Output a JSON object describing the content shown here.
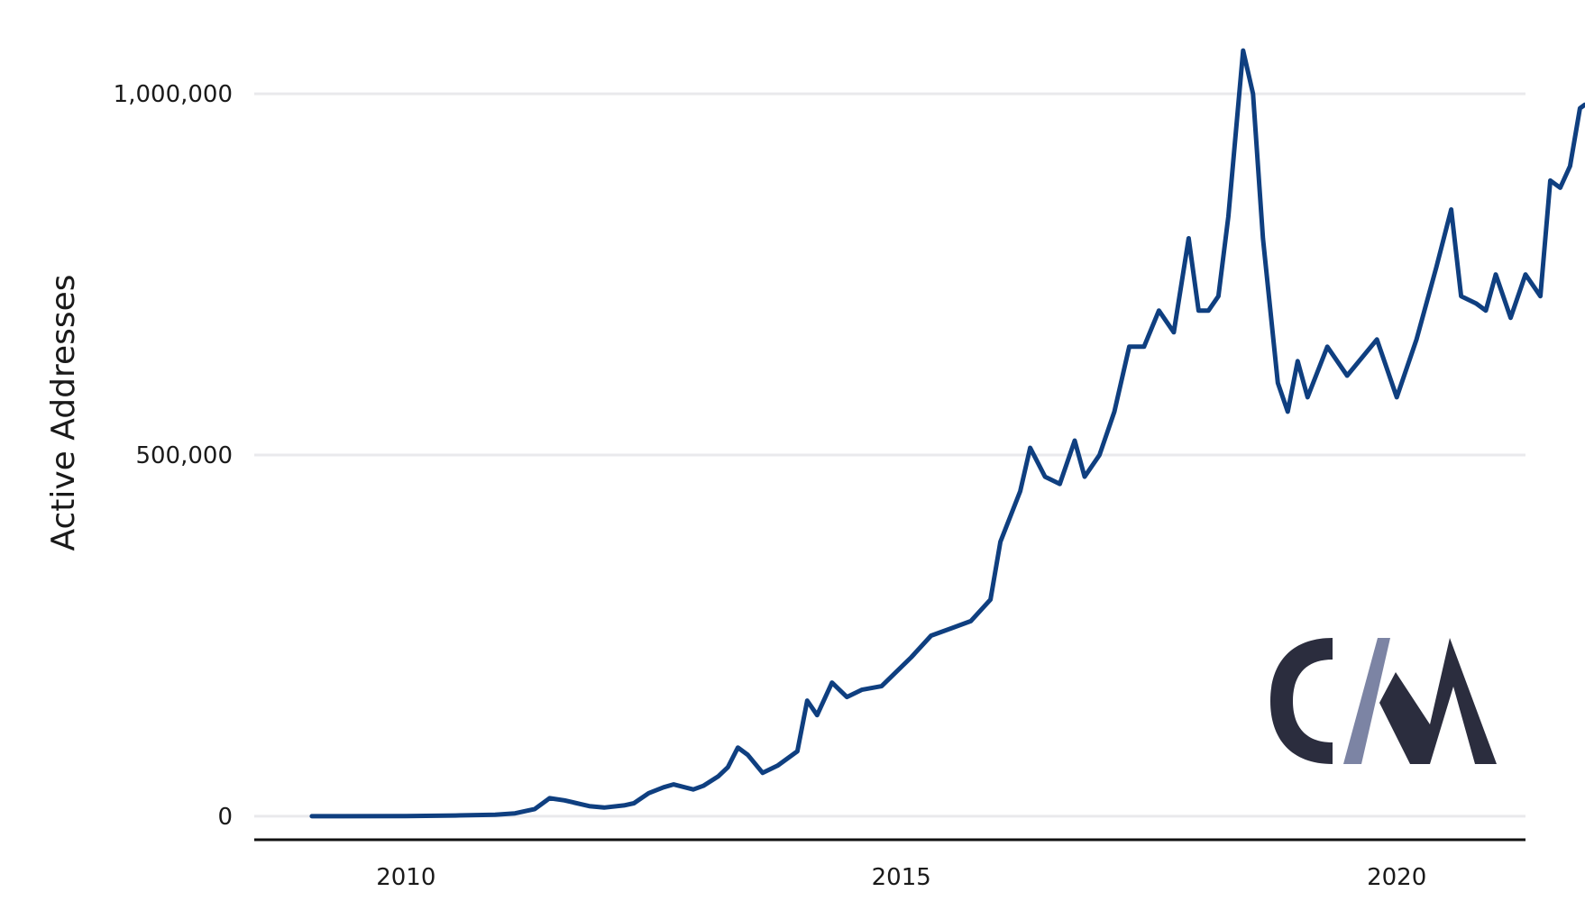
{
  "chart_data": {
    "type": "line",
    "title": "",
    "xlabel": "",
    "ylabel": "Active Addresses",
    "xlim": [
      2008.45,
      2021.3
    ],
    "ylim": [
      -55000,
      1105000
    ],
    "x_ticks": [
      2010,
      2015,
      2020
    ],
    "x_tick_labels": [
      "2010",
      "2015",
      "2020"
    ],
    "y_ticks": [
      0,
      500000,
      1000000
    ],
    "y_tick_labels": [
      "0",
      "500,000",
      "1,000,000"
    ],
    "grid": true,
    "legend": "none",
    "colors": {
      "series": "#0f3f80",
      "grid": "#e9e9ec",
      "axis": "#111111"
    },
    "logo": {
      "text": "CM",
      "left_color": "#2b2d3e",
      "slash_color": "#7c84a4",
      "right_color": "#2b2d3e"
    },
    "series": [
      {
        "values": [
          [
            2009.05,
            0
          ],
          [
            2010.0,
            300
          ],
          [
            2010.5,
            1000
          ],
          [
            2010.9,
            2000
          ],
          [
            2011.1,
            4000
          ],
          [
            2011.3,
            10000
          ],
          [
            2011.45,
            25000
          ],
          [
            2011.6,
            22000
          ],
          [
            2011.85,
            14000
          ],
          [
            2012.0,
            12000
          ],
          [
            2012.2,
            15000
          ],
          [
            2012.3,
            18000
          ],
          [
            2012.45,
            32000
          ],
          [
            2012.6,
            40000
          ],
          [
            2012.7,
            44000
          ],
          [
            2012.9,
            37000
          ],
          [
            2013.0,
            42000
          ],
          [
            2013.15,
            55000
          ],
          [
            2013.25,
            68000
          ],
          [
            2013.35,
            95000
          ],
          [
            2013.45,
            85000
          ],
          [
            2013.6,
            60000
          ],
          [
            2013.75,
            70000
          ],
          [
            2013.95,
            90000
          ],
          [
            2014.05,
            160000
          ],
          [
            2014.15,
            140000
          ],
          [
            2014.3,
            185000
          ],
          [
            2014.45,
            165000
          ],
          [
            2014.6,
            175000
          ],
          [
            2014.8,
            180000
          ],
          [
            2014.95,
            200000
          ],
          [
            2015.1,
            220000
          ],
          [
            2015.3,
            250000
          ],
          [
            2015.5,
            260000
          ],
          [
            2015.7,
            270000
          ],
          [
            2015.9,
            300000
          ],
          [
            2016.0,
            380000
          ],
          [
            2016.2,
            450000
          ],
          [
            2016.3,
            510000
          ],
          [
            2016.45,
            470000
          ],
          [
            2016.6,
            460000
          ],
          [
            2016.75,
            520000
          ],
          [
            2016.85,
            470000
          ],
          [
            2017.0,
            500000
          ],
          [
            2017.15,
            560000
          ],
          [
            2017.3,
            650000
          ],
          [
            2017.45,
            650000
          ],
          [
            2017.6,
            700000
          ],
          [
            2017.75,
            670000
          ],
          [
            2017.9,
            800000
          ],
          [
            2018.0,
            700000
          ],
          [
            2018.1,
            700000
          ],
          [
            2018.2,
            720000
          ],
          [
            2018.3,
            830000
          ],
          [
            2018.45,
            1060000
          ],
          [
            2018.55,
            1000000
          ],
          [
            2018.65,
            800000
          ],
          [
            2018.8,
            600000
          ],
          [
            2018.9,
            560000
          ],
          [
            2019.0,
            630000
          ],
          [
            2019.1,
            580000
          ],
          [
            2019.3,
            650000
          ],
          [
            2019.5,
            610000
          ],
          [
            2019.8,
            660000
          ],
          [
            2020.0,
            580000
          ],
          [
            2020.2,
            660000
          ],
          [
            2020.4,
            760000
          ],
          [
            2020.55,
            840000
          ],
          [
            2020.65,
            720000
          ],
          [
            2020.8,
            710000
          ],
          [
            2020.9,
            700000
          ],
          [
            2021.0,
            750000
          ],
          [
            2021.15,
            690000
          ],
          [
            2021.3,
            750000
          ],
          [
            2021.45,
            720000
          ],
          [
            2021.55,
            880000
          ],
          [
            2021.65,
            870000
          ],
          [
            2021.75,
            900000
          ],
          [
            2021.85,
            980000
          ],
          [
            2021.9,
            985000
          ]
        ]
      }
    ]
  }
}
